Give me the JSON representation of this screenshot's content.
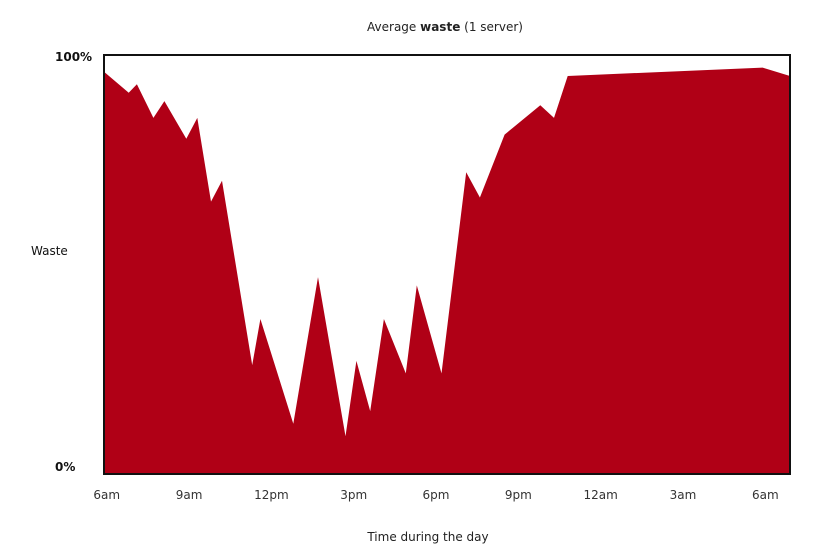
{
  "chart_data": {
    "type": "area",
    "title": {
      "prefix": "Average ",
      "emphasis": "waste",
      "suffix": " (1 server)"
    },
    "xlabel": "Time during the day",
    "ylabel": "Waste",
    "y_tick_labels": [
      "0%",
      "100%"
    ],
    "ylim": [
      0,
      100
    ],
    "x_tick_labels": [
      "6am",
      "9am",
      "12pm",
      "3pm",
      "6pm",
      "9pm",
      "12am",
      "3am",
      "6am"
    ],
    "x_tick_hours": [
      6,
      9,
      12,
      15,
      18,
      21,
      24,
      27,
      30
    ],
    "xlim_hours": [
      5.9,
      30.9
    ],
    "grid": false,
    "fill_color": "#b00016",
    "series": [
      {
        "x_hours": [
          5.9,
          6.8,
          7.1,
          7.7,
          8.1,
          8.9,
          9.3,
          9.8,
          10.2,
          11.3,
          11.6,
          12.8,
          13.7,
          14.7,
          15.1,
          15.6,
          16.1,
          16.9,
          17.3,
          18.2,
          19.1,
          19.6,
          20.5,
          21.8,
          22.3,
          22.8,
          29.9,
          30.9
        ],
        "y": [
          96,
          91,
          93,
          85,
          89,
          80,
          85,
          65,
          70,
          26,
          37,
          12,
          47,
          9,
          27,
          15,
          37,
          24,
          45,
          24,
          72,
          66,
          81,
          88,
          85,
          95,
          97,
          95
        ]
      }
    ]
  }
}
